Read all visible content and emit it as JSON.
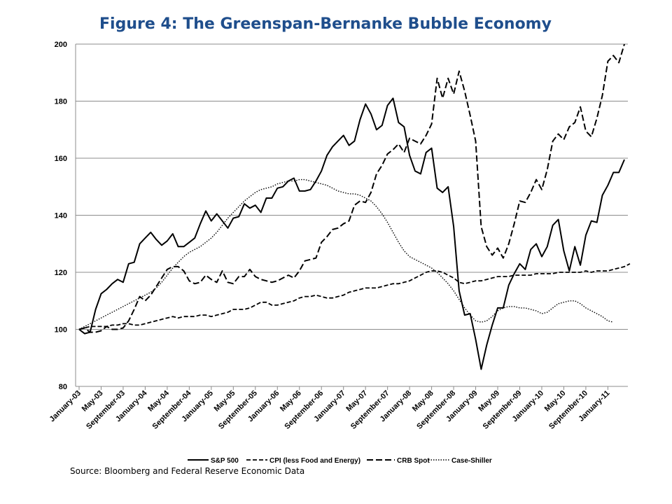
{
  "title": "Figure 4: The Greenspan-Bernanke Bubble Economy",
  "source": "Source: Bloomberg and Federal Reserve Economic Data",
  "chart_data": {
    "type": "line",
    "title": "Figure 4: The Greenspan-Bernanke Bubble Economy",
    "xlabel": "",
    "ylabel": "",
    "ylim": [
      80,
      200
    ],
    "yticks": [
      80,
      100,
      120,
      140,
      160,
      180,
      200
    ],
    "grid": true,
    "legend_position": "bottom",
    "x_tick_labels": [
      "January-03",
      "May-03",
      "September-03",
      "January-04",
      "May-04",
      "September-04",
      "January-05",
      "May-05",
      "September-05",
      "January-06",
      "May-06",
      "September-06",
      "January-07",
      "May-07",
      "September-07",
      "January-08",
      "May-08",
      "September-08",
      "January-09",
      "May-09",
      "September-09",
      "January-10",
      "May-10",
      "September-10",
      "January-11"
    ],
    "series": [
      {
        "name": "S&P 500",
        "style": "solid",
        "x_start": "2003-01",
        "values": [
          100,
          98.5,
          99,
          107,
          112.5,
          114,
          116,
          117.5,
          116.5,
          123,
          123.5,
          130,
          132,
          134,
          131.5,
          129.5,
          131,
          133.5,
          129,
          129,
          130.5,
          132,
          137,
          141.5,
          138,
          140.5,
          138,
          135.5,
          139,
          139.5,
          144,
          142.5,
          143.5,
          141,
          146,
          146,
          149.5,
          150,
          152,
          153,
          148.5,
          148.5,
          149,
          152,
          155.5,
          161,
          164,
          166,
          168,
          164.5,
          166,
          173.5,
          179,
          175.5,
          170,
          171.5,
          178.5,
          181,
          172.5,
          171,
          161,
          155.5,
          154.5,
          162,
          163.5,
          149.5,
          148,
          150,
          136,
          113.5,
          105,
          105.5,
          96.5,
          86,
          94.5,
          101.5,
          107.5,
          107.5,
          115.5,
          119.5,
          123,
          121,
          128,
          130,
          125.5,
          129,
          136.5,
          138.5,
          127.5,
          120.5,
          129,
          122.5,
          133,
          138,
          137.5,
          147,
          150.5,
          155,
          155,
          159.5
        ]
      },
      {
        "name": "CPI (less Food and Energy)",
        "style": "dashed",
        "x_start": "2003-01",
        "values": [
          100,
          100.5,
          101,
          101,
          101,
          101,
          101.5,
          101.5,
          102,
          102,
          101.5,
          101.5,
          102,
          102.5,
          103,
          103.5,
          104,
          104.5,
          104,
          104.5,
          104.5,
          104.5,
          105,
          105,
          104.5,
          105,
          105.5,
          106,
          107,
          107,
          107,
          107.5,
          108.5,
          109.5,
          109.5,
          108.5,
          108.5,
          109,
          109.5,
          110,
          111,
          111.5,
          111.5,
          112,
          111.5,
          111,
          111,
          111.5,
          112,
          113,
          113.5,
          114,
          114.5,
          114.5,
          114.5,
          115,
          115.5,
          116,
          116,
          116.5,
          117,
          118,
          119,
          120,
          120.5,
          120.5,
          120,
          119,
          118,
          116.5,
          116,
          116.5,
          117,
          117,
          117.5,
          118,
          118.5,
          118.5,
          118.5,
          119,
          119,
          119,
          119,
          119.5,
          119.5,
          119.5,
          119.5,
          120,
          120,
          120,
          120,
          120,
          120.5,
          120,
          120.5,
          120.5,
          120.5,
          121,
          121.5,
          122,
          123
        ]
      },
      {
        "name": "CRB Spot",
        "style": "longdash",
        "x_start": "2003-01",
        "values": [
          100,
          100.5,
          99,
          99,
          99.5,
          101,
          100,
          100,
          100.5,
          103,
          107,
          111.5,
          110,
          112,
          115,
          118,
          121,
          122,
          122,
          120.5,
          117,
          116,
          116.5,
          119,
          117.5,
          116.5,
          120.5,
          116.5,
          116,
          118.5,
          118.5,
          121,
          118.5,
          117.5,
          117,
          116.5,
          117,
          118,
          119,
          118,
          120.5,
          124,
          124.5,
          125,
          130.5,
          132.5,
          135,
          135.5,
          137,
          138,
          143.5,
          145,
          144.5,
          148,
          154.5,
          157.5,
          161.5,
          163,
          165,
          162,
          167,
          166,
          165,
          168,
          172,
          188,
          181,
          188,
          182.5,
          190.5,
          183.5,
          175,
          166,
          136,
          129,
          126,
          128.5,
          125,
          130,
          137,
          145,
          144.5,
          148,
          152.5,
          149,
          156,
          166,
          168.5,
          166.5,
          171,
          172.5,
          178,
          169.5,
          167.5,
          174,
          182,
          194,
          196,
          193.5,
          200
        ]
      },
      {
        "name": "Case-Shiller",
        "style": "dotted",
        "x_start": "2003-01",
        "values": [
          100,
          101,
          102,
          103,
          104,
          105,
          106,
          107,
          108,
          109,
          110,
          111,
          112,
          113,
          114.5,
          116.5,
          119,
          121.5,
          123.5,
          125.5,
          127,
          128,
          129,
          130.5,
          132,
          134,
          136.5,
          139,
          141,
          143,
          145,
          146.5,
          148,
          149,
          149.5,
          150,
          151,
          151.5,
          152,
          152,
          152.5,
          152.5,
          152,
          151.5,
          151,
          150.5,
          149.5,
          148.5,
          148,
          147.5,
          147.5,
          147,
          146,
          145,
          143,
          140.5,
          137.5,
          134,
          130.5,
          127.5,
          125.5,
          124.5,
          123.5,
          122.5,
          121.5,
          120,
          118,
          116,
          113.5,
          110.5,
          107.5,
          105,
          103,
          102.5,
          103,
          104.5,
          106.5,
          107.5,
          108,
          108,
          107.5,
          107.5,
          107,
          106.5,
          105.5,
          106,
          107.5,
          109,
          109.5,
          110,
          110,
          109,
          107.5,
          106.5,
          105.5,
          104.5,
          103,
          102.5
        ]
      }
    ]
  }
}
